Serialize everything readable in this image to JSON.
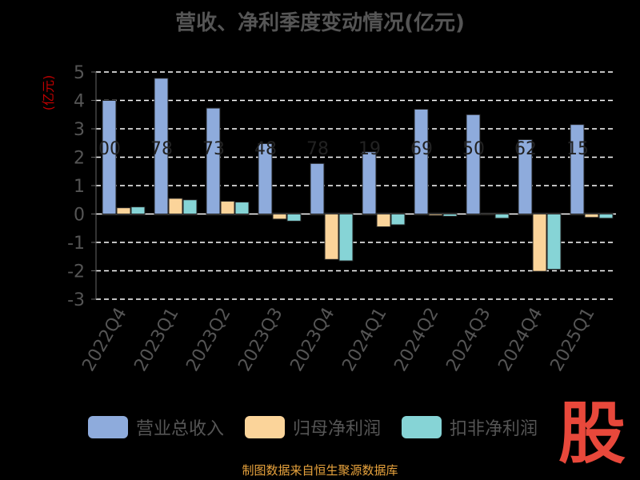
{
  "title": "营收、净利季度变动情况(亿元)",
  "footer": "制图数据来自恒生聚源数据库",
  "logo_text": "股",
  "chart_data": {
    "type": "bar",
    "unit_label": "(亿元)",
    "categories": [
      "2022Q4",
      "2023Q1",
      "2023Q2",
      "2023Q3",
      "2023Q4",
      "2024Q1",
      "2024Q2",
      "2024Q3",
      "2024Q4",
      "2025Q1"
    ],
    "series": [
      {
        "name": "营业总收入",
        "color": "#8eabdc",
        "values": [
          4.0,
          4.78,
          3.73,
          2.48,
          1.78,
          2.19,
          3.69,
          3.5,
          2.62,
          3.15
        ]
      },
      {
        "name": "归母净利润",
        "color": "#fbd49a",
        "values": [
          0.22,
          0.55,
          0.45,
          -0.18,
          -1.6,
          -0.45,
          -0.05,
          -0.03,
          -2.02,
          -0.12
        ]
      },
      {
        "name": "扣非净利润",
        "color": "#86d4d6",
        "values": [
          0.25,
          0.5,
          0.42,
          -0.25,
          -1.65,
          -0.38,
          -0.08,
          -0.15,
          -1.95,
          -0.15
        ]
      }
    ],
    "bar_labels": [
      "00",
      "78",
      "73",
      "48",
      "78",
      "19",
      "69",
      "50",
      "62",
      "15"
    ],
    "ylim": [
      -3,
      5
    ],
    "yticks": [
      -3,
      -2,
      -1,
      0,
      1,
      2,
      3,
      4,
      5
    ],
    "grid": true
  }
}
